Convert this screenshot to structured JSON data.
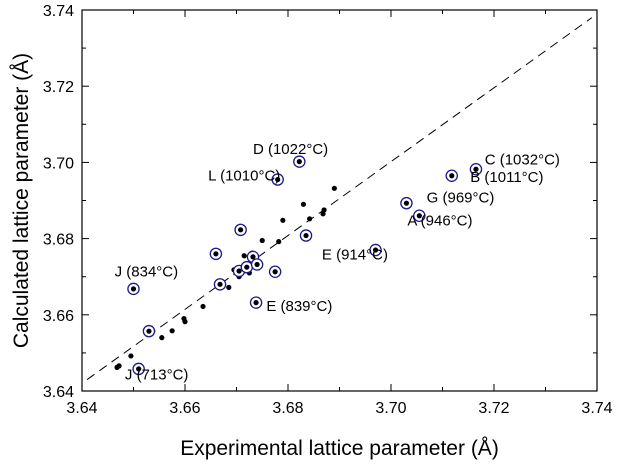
{
  "chart_data": {
    "type": "scatter",
    "xlabel": "Experimental lattice parameter (Å)",
    "ylabel": "Calculated lattice parameter (Å)",
    "xlim": [
      3.64,
      3.74
    ],
    "ylim": [
      3.64,
      3.74
    ],
    "xticks": [
      "3.64",
      "3.66",
      "3.68",
      "3.70",
      "3.72",
      "3.74"
    ],
    "yticks": [
      "3.64",
      "3.66",
      "3.68",
      "3.70",
      "3.72",
      "3.74"
    ],
    "grid": false,
    "legend": "none",
    "reference_line": {
      "style": "dashed",
      "from": [
        3.641,
        3.643
      ],
      "to": [
        3.739,
        3.738
      ]
    },
    "series": [
      {
        "marker": "filled-dot",
        "points": [
          [
            3.6468,
            3.6462
          ],
          [
            3.6472,
            3.6466
          ],
          [
            3.6495,
            3.6492
          ],
          [
            3.6555,
            3.654
          ],
          [
            3.6575,
            3.6558
          ],
          [
            3.6598,
            3.659
          ],
          [
            3.66,
            3.6582
          ],
          [
            3.6635,
            3.6622
          ],
          [
            3.6665,
            3.6678
          ],
          [
            3.6685,
            3.6672
          ],
          [
            3.6695,
            3.6718
          ],
          [
            3.6705,
            3.67
          ],
          [
            3.671,
            3.672
          ],
          [
            3.6715,
            3.6755
          ],
          [
            3.6725,
            3.671
          ],
          [
            3.673,
            3.6762
          ],
          [
            3.675,
            3.6795
          ],
          [
            3.6782,
            3.6792
          ],
          [
            3.679,
            3.6848
          ],
          [
            3.683,
            3.689
          ],
          [
            3.6842,
            3.6852
          ],
          [
            3.6868,
            3.6865
          ],
          [
            3.687,
            3.6875
          ],
          [
            3.689,
            3.6932
          ]
        ]
      },
      {
        "marker": "circled-dot",
        "color": "#1a1a8c",
        "points": [
          [
            3.65,
            3.6668
          ],
          [
            3.651,
            3.6458
          ],
          [
            3.653,
            3.6557
          ],
          [
            3.666,
            3.676
          ],
          [
            3.6668,
            3.668
          ],
          [
            3.6705,
            3.6715
          ],
          [
            3.6708,
            3.6823
          ],
          [
            3.672,
            3.6725
          ],
          [
            3.6732,
            3.6752
          ],
          [
            3.6738,
            3.6632
          ],
          [
            3.674,
            3.6732
          ],
          [
            3.6775,
            3.6713
          ],
          [
            3.678,
            3.6955
          ],
          [
            3.6822,
            3.7002
          ],
          [
            3.6835,
            3.6808
          ],
          [
            3.697,
            3.677
          ],
          [
            3.703,
            3.6893
          ],
          [
            3.7055,
            3.686
          ],
          [
            3.7118,
            3.6965
          ],
          [
            3.7165,
            3.6982
          ]
        ]
      }
    ],
    "annotations": [
      {
        "text": "D (1022°C)",
        "x": 3.6805,
        "y": 3.7022
      },
      {
        "text": "C (1032°C)",
        "x": 3.7255,
        "y": 3.6995
      },
      {
        "text": "L (1010°C)",
        "x": 3.6715,
        "y": 3.6953
      },
      {
        "text": "B (1011°C)",
        "x": 3.7225,
        "y": 3.6948
      },
      {
        "text": "G (969°C)",
        "x": 3.7135,
        "y": 3.6895
      },
      {
        "text": "A (946°C)",
        "x": 3.7095,
        "y": 3.6835
      },
      {
        "text": "E (914°C)",
        "x": 3.693,
        "y": 3.6745
      },
      {
        "text": "J (834°C)",
        "x": 3.6525,
        "y": 3.6701
      },
      {
        "text": "E (839°C)",
        "x": 3.6822,
        "y": 3.661
      },
      {
        "text": "J (713°C)",
        "x": 3.6545,
        "y": 3.643
      }
    ]
  }
}
